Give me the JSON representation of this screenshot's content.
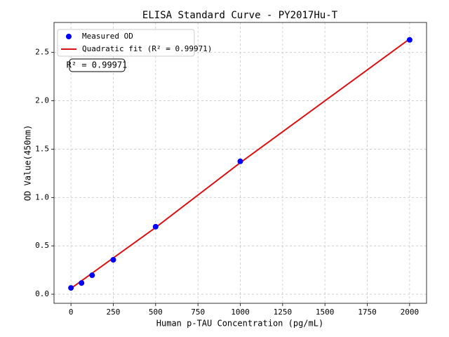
{
  "chart_data": {
    "type": "scatter",
    "title": "ELISA Standard Curve - PY2017Hu-T",
    "x_label": "Human p-TAU Concentration (pg/mL)",
    "y_label": "OD Value(450nm)",
    "annotation": "R² = 0.99971",
    "xlim": [
      -100,
      2100
    ],
    "ylim": [
      -0.094,
      2.81
    ],
    "xticks": [
      0,
      250,
      500,
      750,
      1000,
      1250,
      1500,
      1750,
      2000
    ],
    "yticks": [
      {
        "value": 0,
        "label": "0.0"
      },
      0.5,
      {
        "value": 1,
        "label": "1.0"
      },
      1.5,
      {
        "value": 2,
        "label": "2.0"
      },
      2.5
    ],
    "grid": true,
    "legend": "upper left",
    "series": [
      {
        "name": "Measured OD",
        "color": "#0000ff",
        "type": "scatter",
        "x": [
          0,
          62.5,
          125,
          250,
          500,
          1000,
          2000
        ],
        "values": [
          0.065,
          0.116,
          0.196,
          0.356,
          0.698,
          1.374,
          2.63
        ]
      },
      {
        "name": "Quadratic fit (R² = 0.99971)",
        "color": "#dd1111",
        "type": "line",
        "x": [
          0,
          500,
          1000,
          1500,
          2000
        ],
        "values": [
          0.06,
          0.69,
          1.36,
          2.0,
          2.64
        ]
      }
    ]
  }
}
